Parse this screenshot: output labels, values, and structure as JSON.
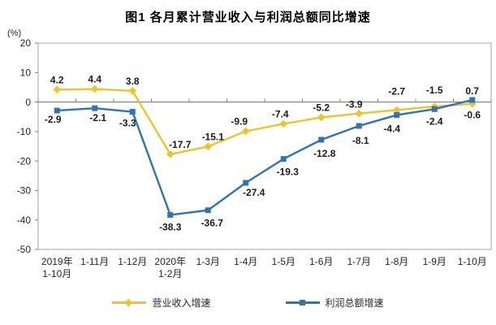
{
  "page": {
    "background": "#ffffff"
  },
  "chart_data": {
    "type": "line",
    "title": "图1 各月累计营业收入与利润总额同比增速",
    "unit_label": "(%)",
    "categories": [
      "2019年\n1-10月",
      "1-11月",
      "1-12月",
      "2020年\n1-2月",
      "1-3月",
      "1-4月",
      "1-5月",
      "1-6月",
      "1-7月",
      "1-8月",
      "1-9月",
      "1-10月"
    ],
    "ylim": [
      -50,
      20
    ],
    "yticks": [
      20,
      10,
      0,
      -10,
      -20,
      -30,
      -40,
      -50
    ],
    "grid": false,
    "legend_position": "bottom",
    "colors": {
      "plot_border": "#a6a6a6",
      "axis": "#808080",
      "data_label": "#1a1a1a"
    },
    "series": [
      {
        "name": "营业收入增速",
        "color": "#EFC428",
        "marker": "diamond",
        "values": [
          4.2,
          4.4,
          3.8,
          -17.7,
          -15.1,
          -9.9,
          -7.4,
          -5.2,
          -3.9,
          -2.7,
          -1.5,
          -0.6
        ],
        "label_offsets": [
          [
            0,
            -8
          ],
          [
            0,
            -8
          ],
          [
            0,
            -8
          ],
          [
            12,
            -8
          ],
          [
            6,
            -8
          ],
          [
            -8,
            -8
          ],
          [
            -4,
            -8
          ],
          [
            0,
            -8
          ],
          [
            -6,
            -7
          ],
          [
            0,
            -19
          ],
          [
            0,
            -16
          ],
          [
            0,
            18
          ]
        ]
      },
      {
        "name": "利润总额增速",
        "color": "#2E74B5",
        "marker": "square",
        "values": [
          -2.9,
          -2.1,
          -3.3,
          -38.3,
          -36.7,
          -27.4,
          -19.3,
          -12.8,
          -8.1,
          -4.4,
          -2.4,
          0.7
        ],
        "label_offsets": [
          [
            -5,
            15
          ],
          [
            4,
            16
          ],
          [
            -6,
            18
          ],
          [
            0,
            19
          ],
          [
            5,
            20
          ],
          [
            10,
            16
          ],
          [
            5,
            20
          ],
          [
            4,
            21
          ],
          [
            2,
            22
          ],
          [
            -6,
            21
          ],
          [
            0,
            19
          ],
          [
            0,
            -7
          ]
        ]
      }
    ]
  }
}
